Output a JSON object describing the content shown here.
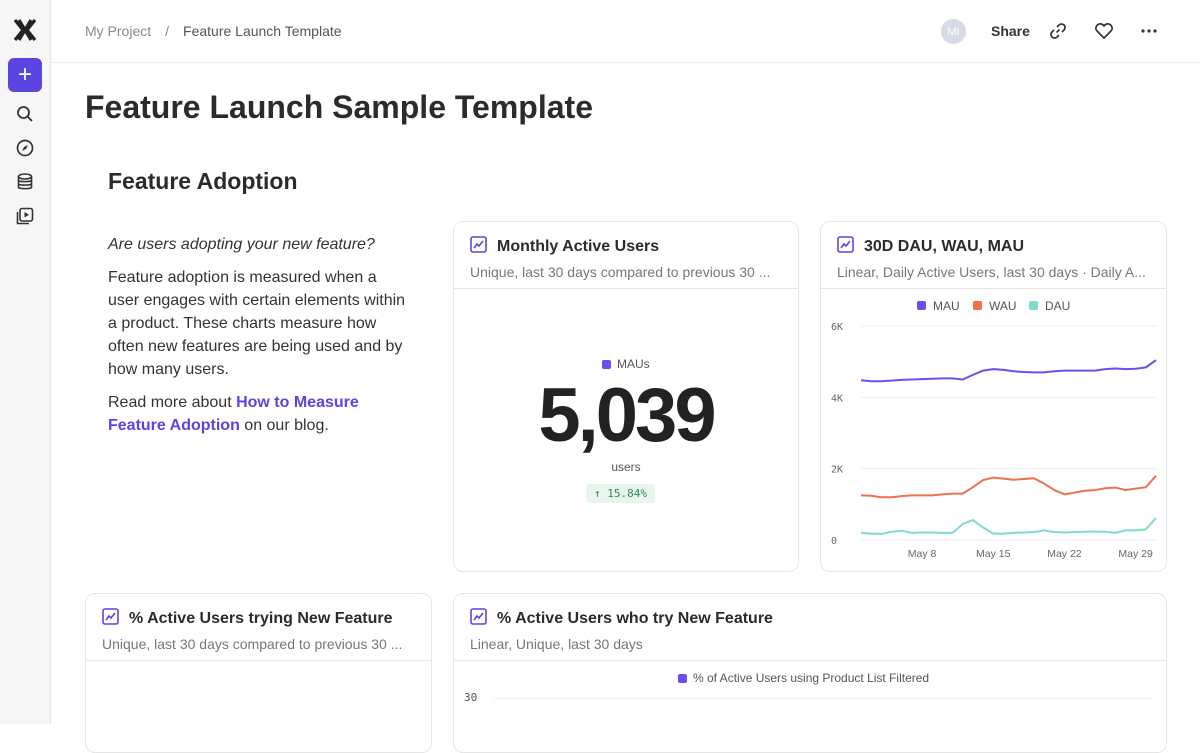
{
  "breadcrumb": {
    "project": "My Project",
    "separator": "/",
    "current": "Feature Launch Template"
  },
  "header": {
    "avatar": "MI",
    "share": "Share"
  },
  "page": {
    "title": "Feature Launch Sample Template",
    "section": "Feature Adoption"
  },
  "intro": {
    "question": "Are users adopting your new feature?",
    "body": "Feature adoption is measured when a user engages with certain elements within a product. These charts measure how often new features are being used and by how many users.",
    "read_pre": "Read more about ",
    "link": "How to Measure Feature Adoption",
    "read_post": " on our blog."
  },
  "accent": "#5b45e0",
  "mau_card": {
    "title": "Monthly Active Users",
    "subtitle": "Unique, last 30 days compared to previous 30 ...",
    "legend": "MAUs",
    "value": "5,039",
    "unit": "users",
    "change": "↑ 15.84%"
  },
  "dau_card": {
    "title": "30D DAU, WAU, MAU",
    "subtitle": "Linear, Daily Active Users, last 30 days · Daily A..."
  },
  "pct_card": {
    "title": "% Active Users trying New Feature",
    "subtitle": "Unique, last 30 days compared to previous 30 ..."
  },
  "try_card": {
    "title": "% Active Users who try New Feature",
    "subtitle": "Linear, Unique, last 30 days",
    "legend": "% of Active Users using Product List Filtered",
    "y_tick": "30"
  },
  "chart_data": {
    "type": "line",
    "x_start": "May 2",
    "x_end": "May 31",
    "x_ticks": [
      "May 8",
      "May 15",
      "May 22",
      "May 29"
    ],
    "y_ticks": [
      "0",
      "2K",
      "4K",
      "6K"
    ],
    "ylim": [
      0,
      6000
    ],
    "grid": true,
    "legend": "top",
    "series": [
      {
        "name": "MAU",
        "color": "#6a4ff0",
        "values": [
          4480,
          4450,
          4450,
          4470,
          4490,
          4500,
          4510,
          4520,
          4530,
          4530,
          4500,
          4630,
          4750,
          4790,
          4770,
          4730,
          4710,
          4700,
          4700,
          4730,
          4750,
          4750,
          4750,
          4750,
          4790,
          4810,
          4790,
          4800,
          4840,
          5040
        ]
      },
      {
        "name": "WAU",
        "color": "#f0704f",
        "values": [
          1250,
          1240,
          1200,
          1200,
          1230,
          1250,
          1250,
          1250,
          1280,
          1300,
          1300,
          1480,
          1680,
          1750,
          1720,
          1690,
          1710,
          1730,
          1580,
          1400,
          1280,
          1330,
          1380,
          1400,
          1450,
          1470,
          1400,
          1440,
          1480,
          1800
        ]
      },
      {
        "name": "DAU",
        "color": "#7ddccd",
        "values": [
          200,
          180,
          170,
          230,
          260,
          200,
          210,
          210,
          200,
          200,
          450,
          560,
          350,
          180,
          180,
          200,
          210,
          220,
          270,
          220,
          210,
          220,
          230,
          240,
          230,
          200,
          270,
          270,
          300,
          620
        ]
      }
    ]
  }
}
